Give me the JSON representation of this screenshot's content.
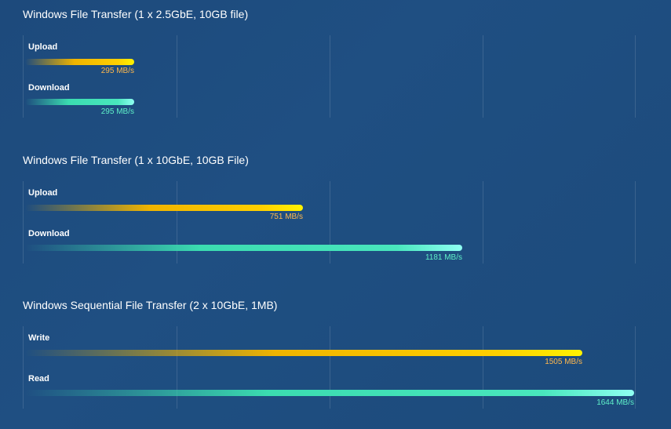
{
  "colors": {
    "upload": "#ffc400",
    "download": "#3bdcb0",
    "upload_value_text": "#ffb84d",
    "download_value_text": "#5ff0c8"
  },
  "chart_data": [
    {
      "type": "bar",
      "orientation": "horizontal",
      "title": "Windows File Transfer (1 x 2.5GbE, 10GB file)",
      "xlim": [
        0,
        2000
      ],
      "grid": true,
      "series": [
        {
          "name": "Upload",
          "value": 295,
          "value_label": "295 MB/s",
          "kind": "upload"
        },
        {
          "name": "Download",
          "value": 295,
          "value_label": "295 MB/s",
          "kind": "download"
        }
      ]
    },
    {
      "type": "bar",
      "orientation": "horizontal",
      "title": "Windows File Transfer (1 x 10GbE, 10GB File)",
      "xlim": [
        0,
        2000
      ],
      "grid": true,
      "series": [
        {
          "name": "Upload",
          "value": 751,
          "value_label": "751 MB/s",
          "kind": "upload"
        },
        {
          "name": "Download",
          "value": 1181,
          "value_label": "1181 MB/s",
          "kind": "download"
        }
      ]
    },
    {
      "type": "bar",
      "orientation": "horizontal",
      "title": "Windows Sequential File Transfer (2 x 10GbE, 1MB)",
      "xlim": [
        0,
        2000
      ],
      "grid": true,
      "series": [
        {
          "name": "Write",
          "value": 1505,
          "value_label": "1505 MB/s",
          "kind": "upload"
        },
        {
          "name": "Read",
          "value": 1644,
          "value_label": "1644 MB/s",
          "kind": "download"
        }
      ]
    }
  ]
}
